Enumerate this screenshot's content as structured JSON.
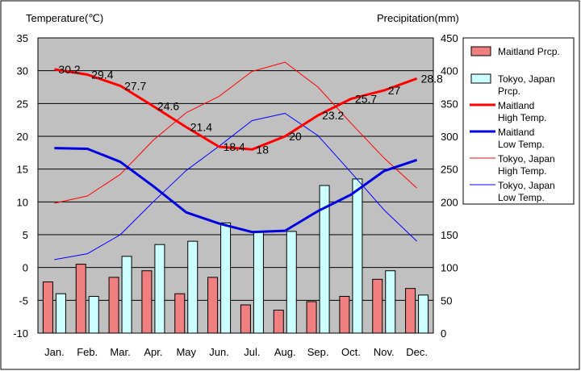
{
  "chart_data": {
    "type": "bar+line",
    "categories": [
      "Jan.",
      "Feb.",
      "Mar.",
      "Apr.",
      "May",
      "Jun.",
      "Jul.",
      "Aug.",
      "Sep.",
      "Oct.",
      "Nov.",
      "Dec."
    ],
    "left_axis": {
      "label": "Temperature(℃)",
      "min": -10,
      "max": 35,
      "step": 5
    },
    "right_axis": {
      "label": "Precipitation(mm)",
      "min": 0,
      "max": 450,
      "step": 50
    },
    "grid": true,
    "legend_position": "right",
    "series": [
      {
        "name": "Maitland Prcp.",
        "legend_lines": [
          "Maitland Prcp."
        ],
        "kind": "bar",
        "axis": "right",
        "color": "#f08080",
        "values": [
          78,
          105,
          85,
          95,
          60,
          85,
          43,
          35,
          48,
          56,
          82,
          68
        ]
      },
      {
        "name": "Tokyo, Japan Prcp.",
        "legend_lines": [
          "Tokyo, Japan",
          "Prcp."
        ],
        "kind": "bar",
        "axis": "right",
        "color": "#ccffff",
        "values": [
          60,
          56,
          117,
          135,
          140,
          168,
          155,
          155,
          225,
          235,
          95,
          58
        ]
      },
      {
        "name": "Maitland High Temp.",
        "legend_lines": [
          "Maitland",
          "High Temp."
        ],
        "kind": "line",
        "axis": "left",
        "color": "#ff0000",
        "width": 3,
        "values": [
          30.2,
          29.4,
          27.7,
          24.6,
          21.4,
          18.4,
          18,
          20,
          23.2,
          25.7,
          27,
          28.8
        ],
        "labels": [
          "30.2",
          "29.4",
          "27.7",
          "24.6",
          "21.4",
          "18.4",
          "18",
          "20",
          "23.2",
          "25.7",
          "27",
          "28.8"
        ]
      },
      {
        "name": "Maitland Low Temp.",
        "legend_lines": [
          "Maitland",
          "Low Temp."
        ],
        "kind": "line",
        "axis": "left",
        "color": "#0000e0",
        "width": 3,
        "values": [
          18.2,
          18.1,
          16.1,
          12.4,
          8.4,
          6.7,
          5.4,
          5.6,
          8.6,
          11.1,
          14.7,
          16.4
        ]
      },
      {
        "name": "Tokyo, Japan High Temp.",
        "legend_lines": [
          "Tokyo, Japan",
          "High Temp."
        ],
        "kind": "line",
        "axis": "left",
        "color": "#ff0000",
        "width": 1,
        "values": [
          9.8,
          10.9,
          14.2,
          19.4,
          23.6,
          26.1,
          29.9,
          31.3,
          27.5,
          22.0,
          16.7,
          12.1
        ]
      },
      {
        "name": "Tokyo, Japan Low Temp.",
        "legend_lines": [
          "Tokyo, Japan",
          "Low Temp."
        ],
        "kind": "line",
        "axis": "left",
        "color": "#0000ff",
        "width": 1,
        "values": [
          1.2,
          2.1,
          5.0,
          10.0,
          14.8,
          18.5,
          22.4,
          23.5,
          20.1,
          14.5,
          8.8,
          4.0
        ]
      }
    ]
  }
}
